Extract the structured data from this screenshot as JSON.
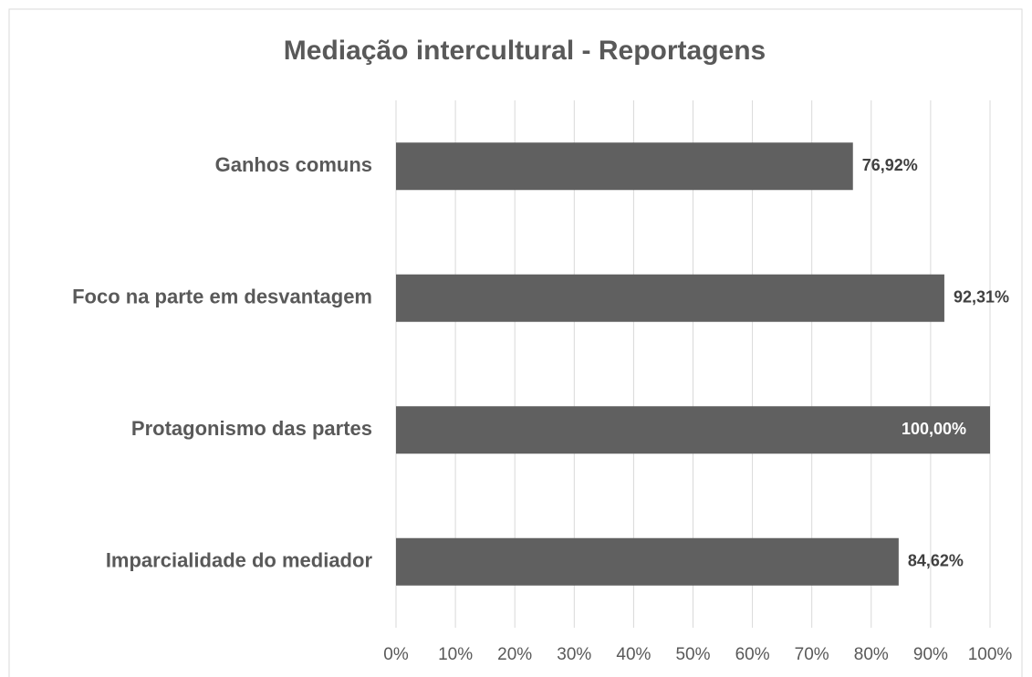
{
  "chart_data": {
    "type": "hbar",
    "title": "Mediação intercultural - Reportagens",
    "categories": [
      "Ganhos comuns",
      "Foco na parte em desvantagem",
      "Protagonismo das partes",
      "Imparcialidade do mediador"
    ],
    "values": [
      76.92,
      92.31,
      100,
      84.62
    ],
    "value_labels": [
      "76,92%",
      "92,31%",
      "100,00%",
      "84,62%"
    ],
    "color": "#606060",
    "xlim": [
      0,
      100
    ],
    "xticks": [
      {
        "value": 0,
        "label": "0%"
      },
      {
        "value": 10,
        "label": "10%"
      },
      {
        "value": 20,
        "label": "20%"
      },
      {
        "value": 30,
        "label": "30%"
      },
      {
        "value": 40,
        "label": "40%"
      },
      {
        "value": 50,
        "label": "50%"
      },
      {
        "value": 60,
        "label": "60%"
      },
      {
        "value": 70,
        "label": "70%"
      },
      {
        "value": 80,
        "label": "80%"
      },
      {
        "value": 90,
        "label": "90%"
      },
      {
        "value": 100,
        "label": "100%"
      }
    ],
    "grid": true
  }
}
